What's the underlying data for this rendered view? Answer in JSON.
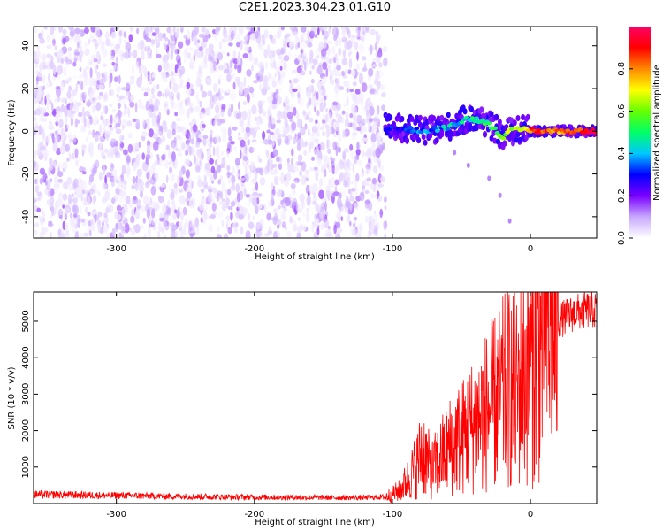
{
  "title": "C2E1.2023.304.23.01.G10",
  "chart_data": [
    {
      "type": "heatmap",
      "title": "",
      "xlabel": "Height of straight line (km)",
      "ylabel": "Frequency (Hz)",
      "xlim": [
        -360,
        48
      ],
      "ylim": [
        -50,
        49
      ],
      "x_ticks": [
        -300,
        -200,
        -100,
        0
      ],
      "y_ticks": [
        -40,
        -20,
        0,
        20,
        40
      ],
      "noise_region": {
        "x_range": [
          -360,
          -105
        ],
        "freq_range": [
          -50,
          49
        ],
        "typical_amplitude": [
          0.02,
          0.15
        ]
      },
      "signal_track": {
        "description_points": [
          {
            "x": -105,
            "freq": 2,
            "amplitude": 0.25
          },
          {
            "x": -90,
            "freq": 1,
            "amplitude": 0.3
          },
          {
            "x": -75,
            "freq": 0,
            "amplitude": 0.35
          },
          {
            "x": -60,
            "freq": 2,
            "amplitude": 0.4
          },
          {
            "x": -45,
            "freq": 6,
            "amplitude": 0.45
          },
          {
            "x": -35,
            "freq": 5,
            "amplitude": 0.5
          },
          {
            "x": -25,
            "freq": 1,
            "amplitude": 0.55
          },
          {
            "x": -20,
            "freq": -3,
            "amplitude": 0.55
          },
          {
            "x": -15,
            "freq": 0,
            "amplitude": 0.65
          },
          {
            "x": -5,
            "freq": 1,
            "amplitude": 0.7
          },
          {
            "x": 5,
            "freq": 0,
            "amplitude": 0.9
          },
          {
            "x": 20,
            "freq": 0,
            "amplitude": 0.8
          },
          {
            "x": 48,
            "freq": 0,
            "amplitude": 0.95
          }
        ],
        "faint_branch": [
          {
            "x": -55,
            "freq": -10
          },
          {
            "x": -45,
            "freq": -16
          },
          {
            "x": -30,
            "freq": -22
          },
          {
            "x": -22,
            "freq": -30
          },
          {
            "x": -15,
            "freq": -42
          }
        ]
      },
      "colorbar": {
        "label": "Normalized spectral amplitude",
        "range": [
          0,
          1
        ],
        "ticks": [
          0.0,
          0.2,
          0.4,
          0.6,
          0.8
        ],
        "colors": [
          "#ffffff",
          "#c8a8ff",
          "#7a00ff",
          "#0000ff",
          "#00c8ff",
          "#00ff66",
          "#66ff00",
          "#ffff00",
          "#ff8800",
          "#ff0000",
          "#ff0066"
        ]
      }
    },
    {
      "type": "line",
      "title": "",
      "xlabel": "Height of straight line (km)",
      "ylabel": "SNR (10 * v/v)",
      "xlim": [
        -360,
        48
      ],
      "ylim": [
        0,
        5800
      ],
      "x_ticks": [
        -300,
        -200,
        -100,
        0
      ],
      "y_ticks": [
        1000,
        2000,
        3000,
        4000,
        5000
      ],
      "series": [
        {
          "color": "#ff0000",
          "x": [
            -360,
            -340,
            -320,
            -300,
            -280,
            -260,
            -240,
            -220,
            -200,
            -180,
            -160,
            -140,
            -120,
            -105,
            -95,
            -88,
            -82,
            -78,
            -72,
            -66,
            -60,
            -55,
            -50,
            -45,
            -40,
            -35,
            -30,
            -25,
            -20,
            -15,
            -12,
            -10,
            -6,
            -2,
            2,
            5,
            8,
            12,
            16,
            20,
            25,
            30,
            35,
            40,
            48
          ],
          "y": [
            250,
            240,
            230,
            220,
            210,
            200,
            190,
            180,
            175,
            170,
            165,
            160,
            160,
            180,
            350,
            700,
            1100,
            1500,
            900,
            1200,
            1500,
            1700,
            1800,
            2000,
            2200,
            2400,
            2600,
            2800,
            3000,
            3200,
            3100,
            3000,
            3400,
            3700,
            3900,
            4200,
            4400,
            4600,
            4800,
            5000,
            5100,
            5200,
            5250,
            5300,
            5300
          ]
        }
      ]
    }
  ]
}
